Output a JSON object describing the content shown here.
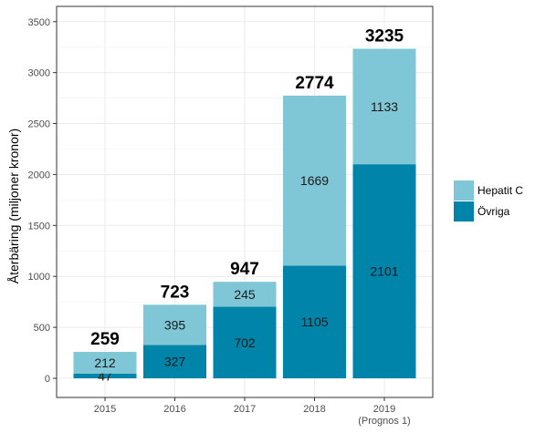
{
  "chart_data": {
    "type": "bar",
    "stacked": true,
    "title": "",
    "xlabel": "",
    "ylabel": "Återbäring (miljoner kronor)",
    "categories": [
      "2015",
      "2016",
      "2017",
      "2018",
      "2019"
    ],
    "category_sublabels": [
      "",
      "",
      "",
      "",
      "(Prognos 1)"
    ],
    "series": [
      {
        "name": "Övriga",
        "values": [
          47,
          327,
          702,
          1105,
          2101
        ],
        "color": "#0084A9"
      },
      {
        "name": "Hepatit C",
        "values": [
          212,
          395,
          245,
          1669,
          1133
        ],
        "color": "#7FC7D7"
      }
    ],
    "totals": [
      259,
      723,
      947,
      2774,
      3235
    ],
    "ylim": [
      0,
      3650
    ],
    "yticks": [
      0,
      500,
      1000,
      1500,
      2000,
      2500,
      3000,
      3500
    ],
    "grid": true,
    "legend": {
      "position": "right",
      "entries": [
        {
          "name": "Hepatit C",
          "color": "#7FC7D7"
        },
        {
          "name": "Övriga",
          "color": "#0084A9"
        }
      ]
    }
  }
}
